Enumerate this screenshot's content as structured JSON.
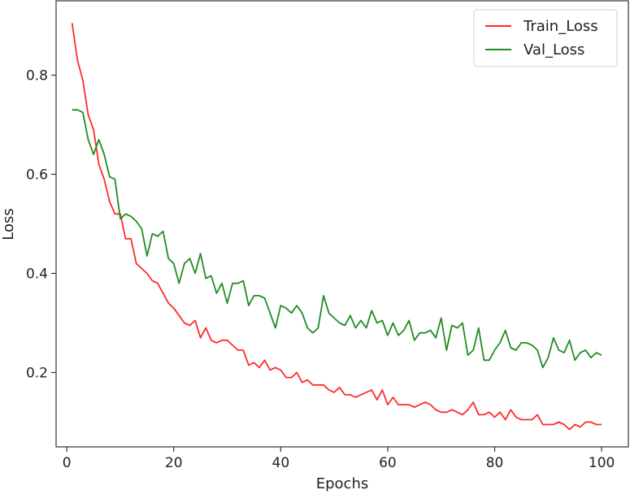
{
  "chart_data": {
    "type": "line",
    "title": "",
    "xlabel": "Epochs",
    "ylabel": "Loss",
    "xlim": [
      -2,
      105
    ],
    "ylim": [
      0.05,
      0.95
    ],
    "x_ticks": [
      0,
      20,
      40,
      60,
      80,
      100
    ],
    "y_ticks": [
      0.2,
      0.4,
      0.6,
      0.8
    ],
    "x_tick_labels": [
      "0",
      "20",
      "40",
      "60",
      "80",
      "100"
    ],
    "y_tick_labels": [
      "0.2",
      "0.4",
      "0.6",
      "0.8"
    ],
    "grid": false,
    "legend_position": "top-right",
    "x": [
      1,
      2,
      3,
      4,
      5,
      6,
      7,
      8,
      9,
      10,
      11,
      12,
      13,
      14,
      15,
      16,
      17,
      18,
      19,
      20,
      21,
      22,
      23,
      24,
      25,
      26,
      27,
      28,
      29,
      30,
      31,
      32,
      33,
      34,
      35,
      36,
      37,
      38,
      39,
      40,
      41,
      42,
      43,
      44,
      45,
      46,
      47,
      48,
      49,
      50,
      51,
      52,
      53,
      54,
      55,
      56,
      57,
      58,
      59,
      60,
      61,
      62,
      63,
      64,
      65,
      66,
      67,
      68,
      69,
      70,
      71,
      72,
      73,
      74,
      75,
      76,
      77,
      78,
      79,
      80,
      81,
      82,
      83,
      84,
      85,
      86,
      87,
      88,
      89,
      90,
      91,
      92,
      93,
      94,
      95,
      96,
      97,
      98,
      99,
      100
    ],
    "series": [
      {
        "name": "Train_Loss",
        "color": "#ff2a2a",
        "values": [
          0.905,
          0.83,
          0.79,
          0.72,
          0.69,
          0.62,
          0.59,
          0.545,
          0.52,
          0.52,
          0.47,
          0.47,
          0.42,
          0.41,
          0.4,
          0.385,
          0.38,
          0.36,
          0.34,
          0.33,
          0.315,
          0.3,
          0.295,
          0.305,
          0.27,
          0.29,
          0.265,
          0.26,
          0.265,
          0.265,
          0.255,
          0.245,
          0.245,
          0.215,
          0.22,
          0.21,
          0.225,
          0.205,
          0.21,
          0.205,
          0.19,
          0.19,
          0.2,
          0.18,
          0.185,
          0.175,
          0.175,
          0.175,
          0.165,
          0.16,
          0.17,
          0.155,
          0.155,
          0.15,
          0.155,
          0.16,
          0.165,
          0.145,
          0.165,
          0.135,
          0.15,
          0.135,
          0.135,
          0.135,
          0.13,
          0.135,
          0.14,
          0.135,
          0.125,
          0.12,
          0.12,
          0.125,
          0.12,
          0.115,
          0.125,
          0.14,
          0.115,
          0.115,
          0.12,
          0.11,
          0.12,
          0.105,
          0.125,
          0.11,
          0.105,
          0.105,
          0.105,
          0.115,
          0.095,
          0.095,
          0.095,
          0.1,
          0.095,
          0.085,
          0.095,
          0.09,
          0.1,
          0.1,
          0.095,
          0.095
        ]
      },
      {
        "name": "Val_Loss",
        "color": "#228b22",
        "values": [
          0.73,
          0.73,
          0.725,
          0.67,
          0.64,
          0.67,
          0.64,
          0.595,
          0.59,
          0.51,
          0.52,
          0.515,
          0.505,
          0.49,
          0.435,
          0.48,
          0.475,
          0.485,
          0.43,
          0.42,
          0.38,
          0.42,
          0.43,
          0.4,
          0.44,
          0.39,
          0.395,
          0.36,
          0.38,
          0.34,
          0.38,
          0.38,
          0.385,
          0.335,
          0.355,
          0.355,
          0.35,
          0.32,
          0.29,
          0.335,
          0.33,
          0.32,
          0.335,
          0.32,
          0.29,
          0.28,
          0.29,
          0.355,
          0.32,
          0.31,
          0.3,
          0.295,
          0.315,
          0.29,
          0.305,
          0.29,
          0.325,
          0.3,
          0.305,
          0.275,
          0.3,
          0.275,
          0.285,
          0.305,
          0.265,
          0.28,
          0.28,
          0.285,
          0.27,
          0.31,
          0.245,
          0.295,
          0.29,
          0.3,
          0.235,
          0.245,
          0.29,
          0.225,
          0.225,
          0.245,
          0.26,
          0.285,
          0.25,
          0.245,
          0.26,
          0.26,
          0.255,
          0.245,
          0.21,
          0.23,
          0.27,
          0.245,
          0.24,
          0.265,
          0.225,
          0.24,
          0.245,
          0.23,
          0.24,
          0.235
        ]
      }
    ]
  }
}
